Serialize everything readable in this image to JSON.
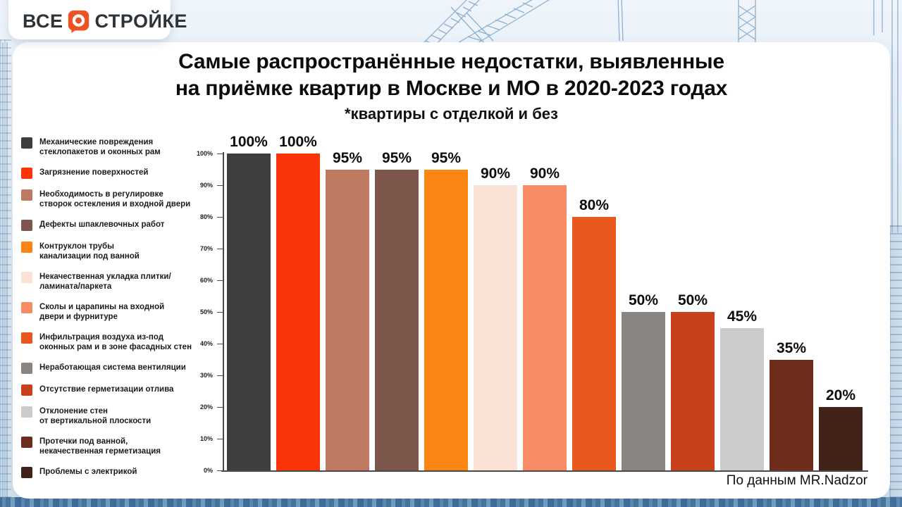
{
  "logo": {
    "part1": "ВСЕ",
    "icon_letter": "О",
    "part2": "СТРОЙКЕ",
    "accent_color": "#EF5123",
    "text_color": "#2E3338"
  },
  "header": {
    "title_line1": "Самые распространённые недостатки, выявленные",
    "title_line2": "на приёмке квартир в Москве и МО в 2020-2023 годах",
    "subtitle": "*квартиры с отделкой и без"
  },
  "source_note": "По данным MR.Nadzor",
  "background": {
    "blueprint_blue": "#6f9cc4",
    "bottom_strip_blue": "#4d7ba6"
  },
  "chart_data": {
    "type": "bar",
    "title": "Самые распространённые недостатки, выявленные\nна приёмке квартир в Москве и МО в 2020-2023 годах",
    "subtitle": "*квартиры с отделкой и без",
    "xlabel": "",
    "ylabel": "",
    "ylim": [
      0,
      100
    ],
    "ytick_step": 10,
    "yticks": [
      "0%",
      "10%",
      "20%",
      "30%",
      "40%",
      "50%",
      "60%",
      "70%",
      "80%",
      "90%",
      "100%"
    ],
    "grid": false,
    "legend_position": "left",
    "value_suffix": "%",
    "source": "По данным MR.Nadzor",
    "categories": [
      "Механические повреждения стеклопакетов и оконных рам",
      "Загрязнение поверхностей",
      "Необходимость в регулировке створок остекления и входной двери",
      "Дефекты шпаклевочных работ",
      "Контруклон трубы канализации под ванной",
      "Некачественная укладка плитки/ламината/паркета",
      "Сколы и царапины на входной двери и фурнитуре",
      "Инфильтрация воздуха из-под оконных рам и в зоне фасадных стен",
      "Неработающая система вентиляции",
      "Отсутствие герметизации отлива",
      "Отклонение стен от вертикальной плоскости",
      "Протечки под ванной, некачественная герметизация",
      "Проблемы с электрикой"
    ],
    "series": [
      {
        "name": "Механические повреждения\nстеклопакетов и оконных рам",
        "value": 100,
        "color": "#3E3E3E"
      },
      {
        "name": "Загрязнение поверхностей",
        "value": 100,
        "color": "#FB3508"
      },
      {
        "name": "Необходимость в регулировке\nстворок остекления и входной двери",
        "value": 95,
        "color": "#BE7A60"
      },
      {
        "name": "Дефекты шпаклевочных работ",
        "value": 95,
        "color": "#7D564B"
      },
      {
        "name": "Контруклон трубы\nканализации под ванной",
        "value": 95,
        "color": "#FB8512"
      },
      {
        "name": "Некачественная укладка плитки/\nламината/паркета",
        "value": 90,
        "color": "#FAE1D6"
      },
      {
        "name": "Сколы и царапины на входной\nдвери и фурнитуре",
        "value": 90,
        "color": "#F98B64"
      },
      {
        "name": "Инфильтрация воздуха из-под\nоконных рам и в зоне фасадных стен",
        "value": 80,
        "color": "#E9581F"
      },
      {
        "name": "Неработающая система вентиляции",
        "value": 50,
        "color": "#8A8582"
      },
      {
        "name": "Отсутствие герметизации отлива",
        "value": 50,
        "color": "#C8411A"
      },
      {
        "name": "Отклонение стен\nот вертикальной плоскости",
        "value": 45,
        "color": "#CBCBCB"
      },
      {
        "name": "Протечки под ванной,\nнекачественная герметизация",
        "value": 35,
        "color": "#6E2D1A"
      },
      {
        "name": "Проблемы с электрикой",
        "value": 20,
        "color": "#402219"
      }
    ]
  }
}
